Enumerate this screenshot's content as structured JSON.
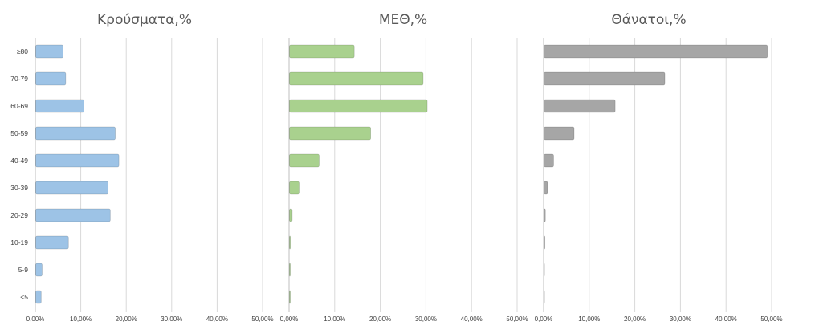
{
  "chart_data": [
    {
      "type": "bar",
      "orientation": "horizontal",
      "title": "Κρούσματα,%",
      "categories": [
        "≥80",
        "70-79",
        "60-69",
        "50-59",
        "40-49",
        "30-39",
        "20-29",
        "10-19",
        "5-9",
        "<5"
      ],
      "values": [
        6.0,
        6.6,
        10.6,
        17.5,
        18.3,
        15.9,
        16.4,
        7.2,
        1.4,
        1.2
      ],
      "xlim": [
        0,
        50
      ],
      "xticks": [
        "0,00%",
        "10,00%",
        "20,00%",
        "30,00%",
        "40,00%",
        "50,00%"
      ],
      "color": "#9dc3e6",
      "grid": true
    },
    {
      "type": "bar",
      "orientation": "horizontal",
      "title": "ΜΕΘ,%",
      "categories": [
        "≥80",
        "70-79",
        "60-69",
        "50-59",
        "40-49",
        "30-39",
        "20-29",
        "10-19",
        "5-9",
        "<5"
      ],
      "values": [
        14.2,
        29.3,
        30.2,
        17.8,
        6.5,
        2.1,
        0.6,
        0.2,
        0.1,
        0.1
      ],
      "xlim": [
        0,
        50
      ],
      "xticks": [
        "0,00%",
        "10,00%",
        "20,00%",
        "30,00%",
        "40,00%",
        "50,00%"
      ],
      "color": "#a9d18e",
      "grid": true
    },
    {
      "type": "bar",
      "orientation": "horizontal",
      "title": "Θάνατοι,%",
      "categories": [
        "≥80",
        "70-79",
        "60-69",
        "50-59",
        "40-49",
        "30-39",
        "20-29",
        "10-19",
        "5-9",
        "<5"
      ],
      "values": [
        49.0,
        26.5,
        15.6,
        6.6,
        2.1,
        0.8,
        0.3,
        0.2,
        0,
        0
      ],
      "xlim": [
        0,
        50
      ],
      "xticks": [
        "0,00%",
        "10,00%",
        "20,00%",
        "30,00%",
        "40,00%",
        "50,00%"
      ],
      "color": "#a6a6a6",
      "grid": true
    }
  ]
}
